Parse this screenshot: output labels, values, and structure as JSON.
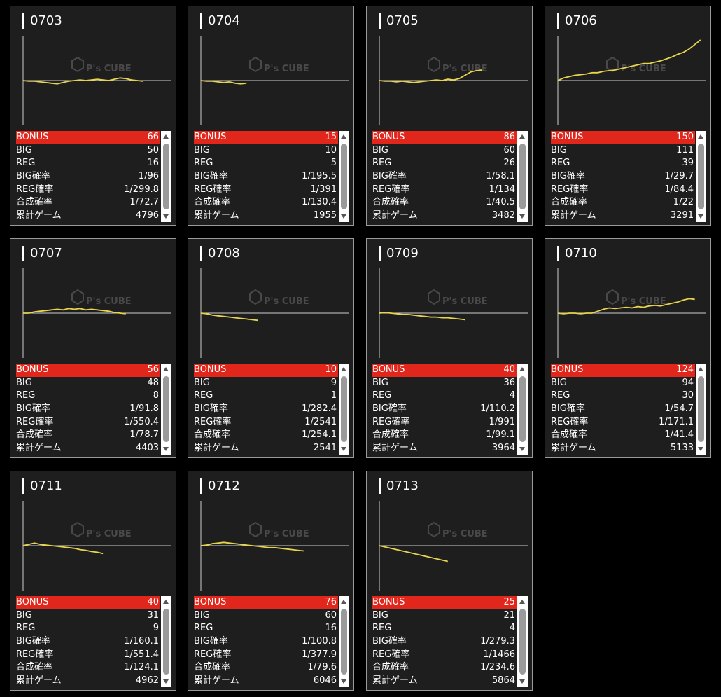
{
  "labels": {
    "bonus": "BONUS",
    "big": "BIG",
    "reg": "REG",
    "big_rate": "BIG確率",
    "reg_rate": "REG確率",
    "combined_rate": "合成確率",
    "total_games": "累計ゲーム",
    "watermark_line1": "P's CUBE"
  },
  "colors": {
    "accent": "#e1261c",
    "line": "#e8d44d",
    "card_bg": "#1e1e1e"
  },
  "machines": [
    {
      "id": "0703",
      "bonus": "66",
      "big": "50",
      "reg": "16",
      "big_rate": "1/96",
      "reg_rate": "1/299.8",
      "combined_rate": "1/72.7",
      "total_games": "4796",
      "graph": [
        0,
        -1,
        -1,
        -2,
        -3,
        -4,
        -5,
        -3,
        -1,
        0,
        1,
        0,
        1,
        2,
        1,
        0,
        2,
        4,
        3,
        1,
        0,
        -1
      ]
    },
    {
      "id": "0704",
      "bonus": "15",
      "big": "10",
      "reg": "5",
      "big_rate": "1/195.5",
      "reg_rate": "1/391",
      "combined_rate": "1/130.4",
      "total_games": "1955",
      "graph": [
        0,
        -1,
        -1,
        -2,
        -3,
        -2,
        -4,
        -5,
        -4
      ]
    },
    {
      "id": "0705",
      "bonus": "86",
      "big": "60",
      "reg": "26",
      "big_rate": "1/58.1",
      "reg_rate": "1/134",
      "combined_rate": "1/40.5",
      "total_games": "3482",
      "graph": [
        0,
        -1,
        -1,
        -2,
        -1,
        -2,
        -3,
        -2,
        -1,
        0,
        1,
        0,
        2,
        1,
        3,
        8,
        13,
        15,
        16
      ]
    },
    {
      "id": "0706",
      "bonus": "150",
      "big": "111",
      "reg": "39",
      "big_rate": "1/29.7",
      "reg_rate": "1/84.4",
      "combined_rate": "1/22",
      "total_games": "3291",
      "graph": [
        0,
        4,
        6,
        8,
        9,
        10,
        12,
        12,
        14,
        15,
        16,
        18,
        20,
        22,
        24,
        26,
        26,
        28,
        30,
        33,
        36,
        40,
        43,
        48,
        55,
        62
      ]
    },
    {
      "id": "0707",
      "bonus": "56",
      "big": "48",
      "reg": "8",
      "big_rate": "1/91.8",
      "reg_rate": "1/550.4",
      "combined_rate": "1/78.7",
      "total_games": "4403",
      "graph": [
        0,
        0,
        2,
        3,
        4,
        5,
        6,
        5,
        7,
        6,
        7,
        5,
        6,
        5,
        4,
        3,
        1,
        0,
        -1
      ]
    },
    {
      "id": "0708",
      "bonus": "10",
      "big": "9",
      "reg": "1",
      "big_rate": "1/282.4",
      "reg_rate": "1/2541",
      "combined_rate": "1/254.1",
      "total_games": "2541",
      "graph": [
        0,
        -1,
        -3,
        -4,
        -5,
        -6,
        -7,
        -8,
        -9,
        -10,
        -11
      ]
    },
    {
      "id": "0709",
      "bonus": "40",
      "big": "36",
      "reg": "4",
      "big_rate": "1/110.2",
      "reg_rate": "1/991",
      "combined_rate": "1/99.1",
      "total_games": "3964",
      "graph": [
        0,
        1,
        0,
        -1,
        -2,
        -2,
        -3,
        -4,
        -5,
        -6,
        -6,
        -7,
        -7,
        -8,
        -9,
        -10
      ]
    },
    {
      "id": "0710",
      "bonus": "124",
      "big": "94",
      "reg": "30",
      "big_rate": "1/54.7",
      "reg_rate": "1/171.1",
      "combined_rate": "1/41.4",
      "total_games": "5133",
      "graph": [
        0,
        -1,
        0,
        0,
        -1,
        0,
        0,
        3,
        6,
        8,
        7,
        8,
        9,
        8,
        10,
        9,
        11,
        12,
        11,
        13,
        15,
        17,
        20,
        22,
        21
      ]
    },
    {
      "id": "0711",
      "bonus": "40",
      "big": "31",
      "reg": "9",
      "big_rate": "1/160.1",
      "reg_rate": "1/551.4",
      "combined_rate": "1/124.1",
      "total_games": "4962",
      "graph": [
        0,
        2,
        4,
        2,
        1,
        0,
        -1,
        -2,
        -3,
        -4,
        -6,
        -7,
        -9,
        -10,
        -12
      ]
    },
    {
      "id": "0712",
      "bonus": "76",
      "big": "60",
      "reg": "16",
      "big_rate": "1/100.8",
      "reg_rate": "1/377.9",
      "combined_rate": "1/79.6",
      "total_games": "6046",
      "graph": [
        0,
        1,
        3,
        4,
        5,
        4,
        3,
        2,
        1,
        0,
        -1,
        -2,
        -3,
        -3,
        -4,
        -5,
        -6,
        -7,
        -8
      ]
    },
    {
      "id": "0713",
      "bonus": "25",
      "big": "21",
      "reg": "4",
      "big_rate": "1/279.3",
      "reg_rate": "1/1466",
      "combined_rate": "1/234.6",
      "total_games": "5864",
      "graph": [
        0,
        -2,
        -4,
        -6,
        -8,
        -10,
        -12,
        -14,
        -16,
        -18,
        -20,
        -22,
        -24
      ]
    }
  ]
}
